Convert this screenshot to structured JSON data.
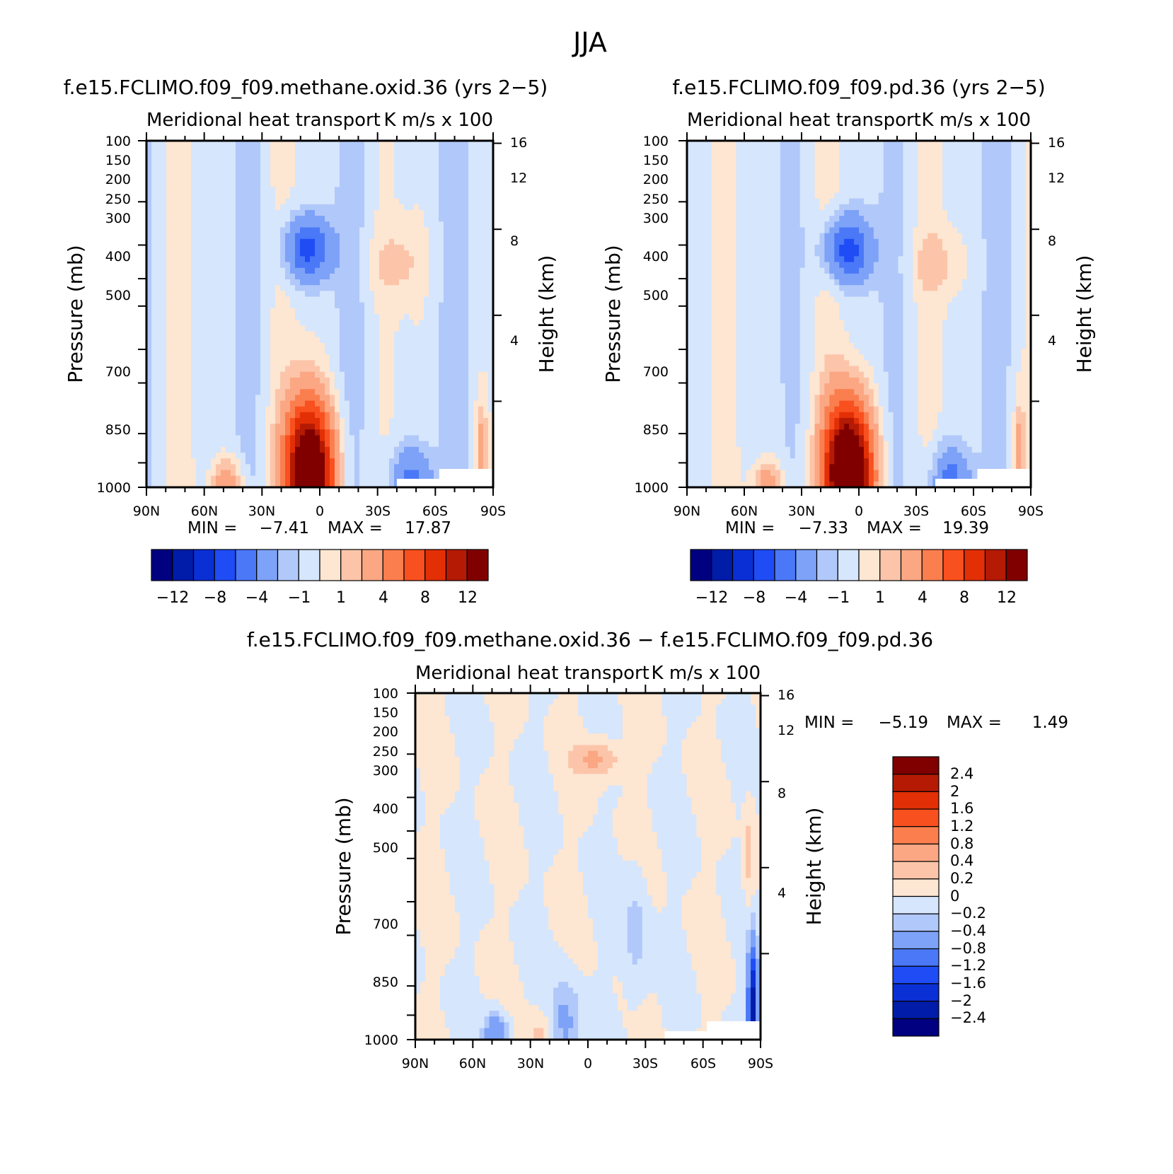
{
  "figure": {
    "title": "JJA"
  },
  "colors": {
    "main_scale": [
      "#000080",
      "#001ca8",
      "#0a2fd4",
      "#1f4cf5",
      "#4a78f7",
      "#7da2f7",
      "#b1c8fa",
      "#d6e6fc",
      "#fde6d2",
      "#fcc5aa",
      "#fba783",
      "#fb7e4f",
      "#f9501f",
      "#e22f06",
      "#b41a04",
      "#800000"
    ],
    "diff_scale": [
      "#000080",
      "#001ca8",
      "#0a2fd4",
      "#1f4cf5",
      "#4a78f7",
      "#7da2f7",
      "#b1c8fa",
      "#d6e6fc",
      "#fde6d2",
      "#fcc5aa",
      "#fba783",
      "#fb7e4f",
      "#f9501f",
      "#e22f06",
      "#b41a04",
      "#800000"
    ]
  },
  "chart_data": [
    {
      "type": "heatmap",
      "title": "f.e15.FCLIMO.f09_f09.methane.oxid.36 (yrs 2−5)",
      "subtitle_left": "Meridional heat transport",
      "subtitle_right": "K m/s x 100",
      "xlabel": "",
      "ylabel": "Pressure (mb)",
      "ylabel_right": "Height (km)",
      "x_ticks": [
        "90N",
        "60N",
        "30N",
        "0",
        "30S",
        "60S",
        "90S"
      ],
      "y_ticks": [
        "100",
        "150",
        "200",
        "250",
        "300",
        "400",
        "500",
        "700",
        "850",
        "1000"
      ],
      "y_right_ticks": [
        "16",
        "12",
        "8",
        "4"
      ],
      "min_label": "MIN =",
      "min_value": "−7.41",
      "max_label": "MAX =",
      "max_value": "17.87",
      "colorbar_labels": [
        "−12",
        "−8",
        "−4",
        "−1",
        "1",
        "4",
        "8",
        "12"
      ],
      "features": [
        {
          "lat": 6,
          "p": 205,
          "v": -6.5,
          "sx": 12,
          "sy": 1.4
        },
        {
          "lat": -40,
          "p": 225,
          "v": 1.5,
          "sx": 14,
          "sy": 1.5
        },
        {
          "lat": 5,
          "p": 940,
          "v": 16,
          "sx": 12,
          "sy": 3.0
        },
        {
          "lat": 8,
          "p": 780,
          "v": 3,
          "sx": 12,
          "sy": 3.0
        },
        {
          "lat": 48,
          "p": 985,
          "v": 4,
          "sx": 8,
          "sy": 1.2
        },
        {
          "lat": -48,
          "p": 950,
          "v": -4.5,
          "sx": 10,
          "sy": 1.5
        },
        {
          "lat": -84,
          "p": 780,
          "v": 3,
          "sx": 3,
          "sy": 2.2
        }
      ]
    },
    {
      "type": "heatmap",
      "title": "f.e15.FCLIMO.f09_f09.pd.36 (yrs 2−5)",
      "subtitle_left": "Meridional heat transport",
      "subtitle_right": "K m/s x 100",
      "xlabel": "",
      "ylabel": "Pressure (mb)",
      "ylabel_right": "Height (km)",
      "x_ticks": [
        "90N",
        "60N",
        "30N",
        "0",
        "30S",
        "60S",
        "90S"
      ],
      "y_ticks": [
        "100",
        "150",
        "200",
        "250",
        "300",
        "400",
        "500",
        "700",
        "850",
        "1000"
      ],
      "y_right_ticks": [
        "16",
        "12",
        "8",
        "4"
      ],
      "min_label": "MIN =",
      "min_value": "−7.33",
      "max_label": "MAX =",
      "max_value": "19.39",
      "colorbar_labels": [
        "−12",
        "−8",
        "−4",
        "−1",
        "1",
        "4",
        "8",
        "12"
      ],
      "features": [
        {
          "lat": 6,
          "p": 205,
          "v": -6.5,
          "sx": 12,
          "sy": 1.4
        },
        {
          "lat": -40,
          "p": 225,
          "v": 1.5,
          "sx": 14,
          "sy": 1.5
        },
        {
          "lat": 5,
          "p": 940,
          "v": 17.5,
          "sx": 12,
          "sy": 3.0
        },
        {
          "lat": 8,
          "p": 780,
          "v": 3,
          "sx": 12,
          "sy": 3.0
        },
        {
          "lat": 48,
          "p": 985,
          "v": 4,
          "sx": 8,
          "sy": 1.2
        },
        {
          "lat": -48,
          "p": 950,
          "v": -4.5,
          "sx": 10,
          "sy": 1.5
        },
        {
          "lat": -84,
          "p": 780,
          "v": 3,
          "sx": 3,
          "sy": 2.2
        }
      ]
    },
    {
      "type": "heatmap",
      "title": "f.e15.FCLIMO.f09_f09.methane.oxid.36 − f.e15.FCLIMO.f09_f09.pd.36",
      "subtitle_left": "Meridional heat transport",
      "subtitle_right": "K m/s x 100",
      "xlabel": "",
      "ylabel": "Pressure (mb)",
      "ylabel_right": "Height (km)",
      "x_ticks": [
        "90N",
        "60N",
        "30N",
        "0",
        "30S",
        "60S",
        "90S"
      ],
      "y_ticks": [
        "100",
        "150",
        "200",
        "250",
        "300",
        "400",
        "500",
        "700",
        "850",
        "1000"
      ],
      "y_right_ticks": [
        "16",
        "12",
        "8",
        "4"
      ],
      "min_label": "MIN =",
      "min_value": "−5.19",
      "max_label": "MAX =",
      "max_value": "1.49",
      "colorbar_labels": [
        "2.4",
        "2",
        "1.6",
        "1.2",
        "0.8",
        "0.4",
        "0.2",
        "0",
        "−0.2",
        "−0.4",
        "−0.8",
        "−1.2",
        "−1.6",
        "−2",
        "−2.4"
      ],
      "features": [
        {
          "lat": -5,
          "p": 155,
          "v": 0.5,
          "sx": 12,
          "sy": 0.8
        },
        {
          "lat": 48,
          "p": 970,
          "v": -0.8,
          "sx": 6,
          "sy": 1.0
        },
        {
          "lat": 12,
          "p": 900,
          "v": -0.5,
          "sx": 8,
          "sy": 2.0
        },
        {
          "lat": 25,
          "p": 980,
          "v": 0.3,
          "sx": 7,
          "sy": 1.0
        },
        {
          "lat": -86,
          "p": 800,
          "v": -2.2,
          "sx": 2.5,
          "sy": 2.6
        },
        {
          "lat": -84,
          "p": 300,
          "v": 0.3,
          "sx": 3,
          "sy": 2.5
        },
        {
          "lat": -25,
          "p": 500,
          "v": -0.3,
          "sx": 6,
          "sy": 3.0
        }
      ]
    }
  ]
}
